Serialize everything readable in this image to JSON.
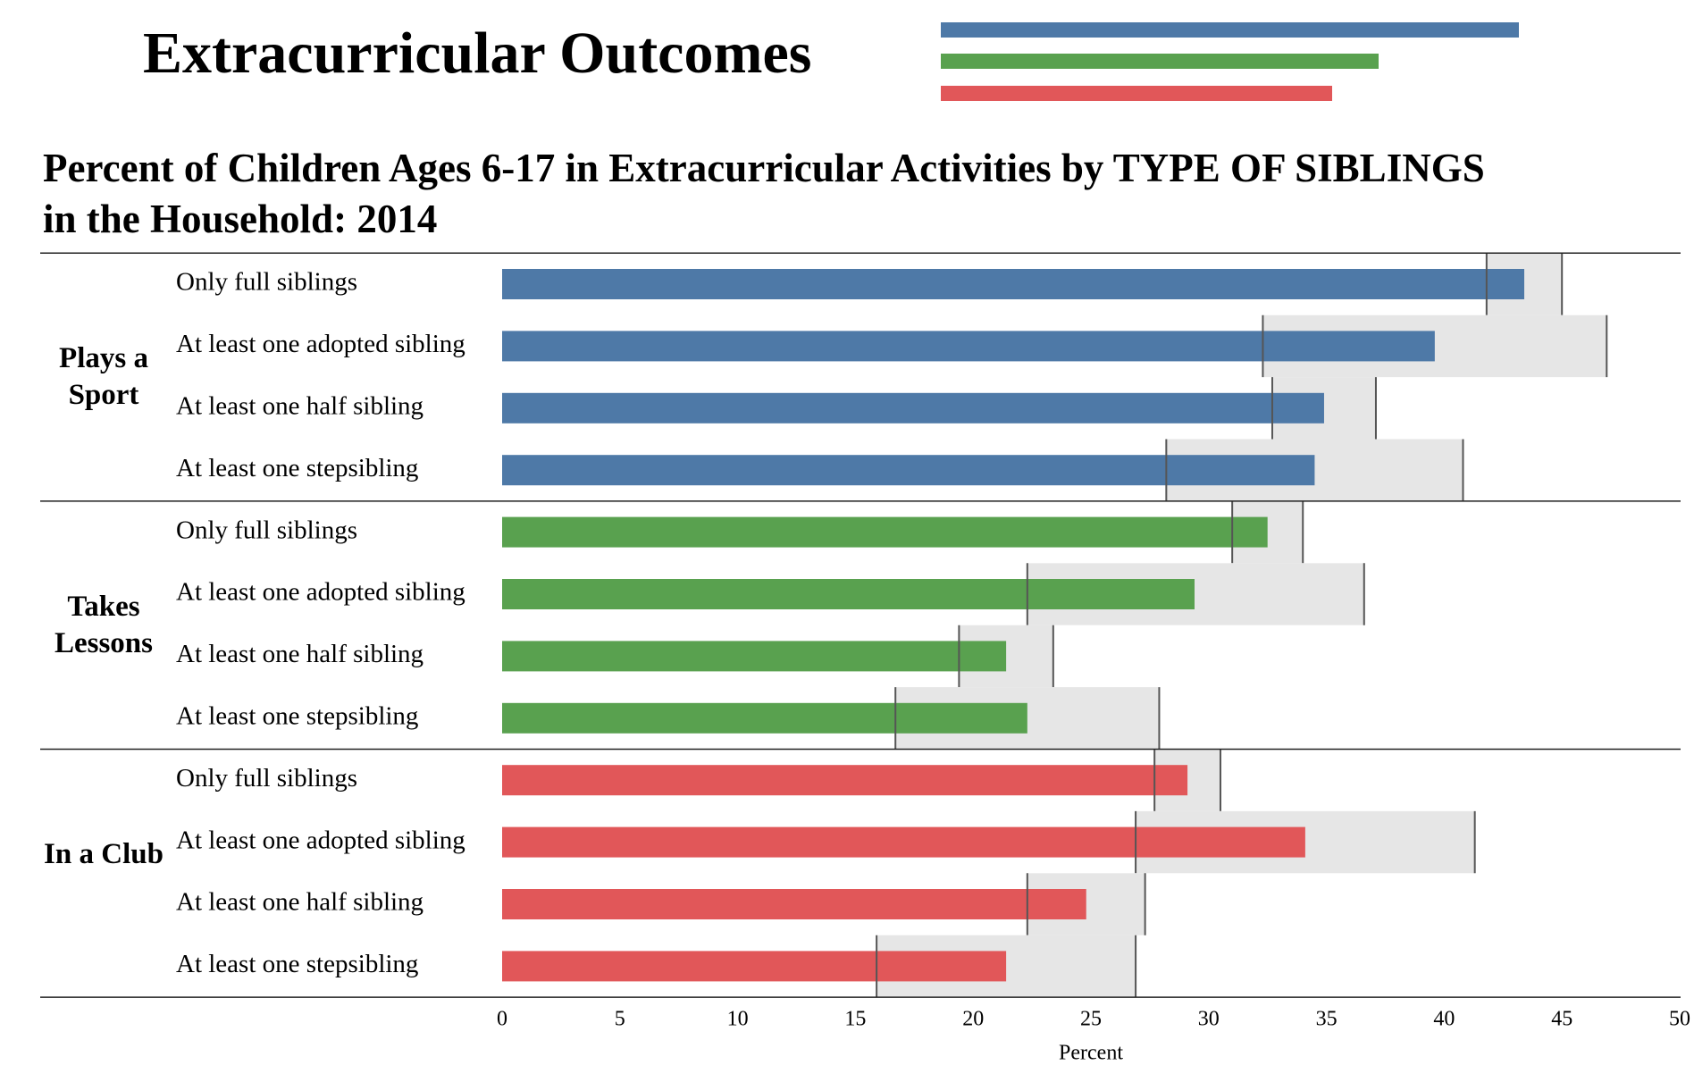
{
  "header": {
    "title": "Extracurricular Outcomes"
  },
  "chart_data": {
    "type": "bar",
    "title": "Percent of Children Ages 6-17 in Extracurricular Activities by TYPE OF SIBLINGS in the Household: 2014",
    "xlabel": "Percent",
    "xlim": [
      0,
      50
    ],
    "xticks": [
      0,
      5,
      10,
      15,
      20,
      25,
      30,
      35,
      40,
      45,
      50
    ],
    "groups": [
      {
        "name": "Plays a Sport",
        "color": "#4e79a7",
        "categories": [
          "Only full siblings",
          "At least one adopted sibling",
          "At least one half sibling",
          "At least one stepsibling"
        ],
        "values": [
          43.4,
          39.6,
          34.9,
          34.5
        ],
        "ci_low": [
          41.8,
          32.3,
          32.7,
          28.2
        ],
        "ci_high": [
          45.0,
          46.9,
          37.1,
          40.8
        ]
      },
      {
        "name": "Takes Lessons",
        "color": "#59a14f",
        "categories": [
          "Only full siblings",
          "At least one adopted sibling",
          "At least one half sibling",
          "At least one stepsibling"
        ],
        "values": [
          32.5,
          29.4,
          21.4,
          22.3
        ],
        "ci_low": [
          31.0,
          22.3,
          19.4,
          16.7
        ],
        "ci_high": [
          34.0,
          36.6,
          23.4,
          27.9
        ]
      },
      {
        "name": "In a Club",
        "color": "#e15759",
        "categories": [
          "Only full siblings",
          "At least one adopted sibling",
          "At least one half sibling",
          "At least one stepsibling"
        ],
        "values": [
          29.1,
          34.1,
          24.8,
          21.4
        ],
        "ci_low": [
          27.7,
          26.9,
          22.3,
          15.9
        ],
        "ci_high": [
          30.5,
          41.3,
          27.3,
          26.9
        ]
      }
    ]
  }
}
